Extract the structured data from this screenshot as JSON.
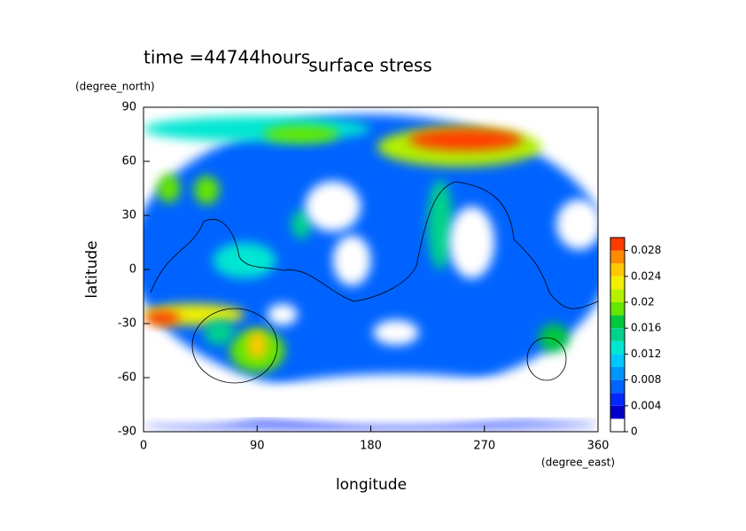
{
  "chart_data": {
    "type": "contour",
    "annotation": "time =44744hours",
    "title": "surface stress",
    "y_unit": "(degree_north)",
    "y_label": "latitude",
    "x_label": "longitude",
    "x_unit": "(degree_east)",
    "xlim": [
      0,
      360
    ],
    "ylim": [
      -90,
      90
    ],
    "xticks": [
      0,
      90,
      180,
      270,
      360
    ],
    "yticks": [
      -90,
      -60,
      -30,
      0,
      30,
      60,
      90
    ],
    "levels": [
      0,
      0.002,
      0.004,
      0.006,
      0.008,
      0.01,
      0.012,
      0.014,
      0.016,
      0.018,
      0.02,
      0.022,
      0.024,
      0.026,
      0.028,
      0.03
    ],
    "colors": [
      "#ffffff",
      "#0000c8",
      "#0028ff",
      "#0064ff",
      "#0096ff",
      "#00c8ff",
      "#00e6d2",
      "#00d28c",
      "#00c83c",
      "#64e600",
      "#b4f000",
      "#f0f000",
      "#ffc800",
      "#ff8c00",
      "#ff3c00"
    ],
    "colorbar_ticks": [
      0,
      0.004,
      0.008,
      0.012,
      0.016,
      0.02,
      0.024,
      0.028
    ],
    "features": [
      {
        "lon": 180,
        "lat": 8,
        "rlon": 190,
        "rlat": 78,
        "value": 0.006
      },
      {
        "lon": 180,
        "lat": -86,
        "rlon": 180,
        "rlat": 2,
        "value": 0.004
      },
      {
        "lon": 90,
        "lat": 78,
        "rlon": 90,
        "rlat": 7,
        "value": 0.012
      },
      {
        "lon": 125,
        "lat": 75,
        "rlon": 30,
        "rlat": 5,
        "value": 0.018
      },
      {
        "lon": 250,
        "lat": 68,
        "rlon": 65,
        "rlat": 11,
        "value": 0.02
      },
      {
        "lon": 255,
        "lat": 72,
        "rlon": 45,
        "rlat": 6,
        "value": 0.03
      },
      {
        "lon": 20,
        "lat": 45,
        "rlon": 9,
        "rlat": 8,
        "value": 0.018
      },
      {
        "lon": 50,
        "lat": 44,
        "rlon": 10,
        "rlat": 8,
        "value": 0.018
      },
      {
        "lon": 125,
        "lat": 25,
        "rlon": 8,
        "rlat": 8,
        "value": 0.014
      },
      {
        "lon": 235,
        "lat": 25,
        "rlon": 10,
        "rlat": 25,
        "value": 0.014
      },
      {
        "lon": 40,
        "lat": -25,
        "rlon": 40,
        "rlat": 6,
        "value": 0.022
      },
      {
        "lon": 15,
        "lat": -27,
        "rlon": 14,
        "rlat": 4,
        "value": 0.028
      },
      {
        "lon": 90,
        "lat": -45,
        "rlon": 22,
        "rlat": 12,
        "value": 0.018
      },
      {
        "lon": 90,
        "lat": -42,
        "rlon": 8,
        "rlat": 8,
        "value": 0.024
      },
      {
        "lon": 60,
        "lat": -35,
        "rlon": 12,
        "rlat": 7,
        "value": 0.014
      },
      {
        "lon": 325,
        "lat": -38,
        "rlon": 12,
        "rlat": 8,
        "value": 0.016
      },
      {
        "lon": 80,
        "lat": 5,
        "rlon": 25,
        "rlat": 10,
        "value": 0.012
      },
      {
        "lon": 150,
        "lat": 35,
        "rlon": 22,
        "rlat": 14,
        "value": 0
      },
      {
        "lon": 165,
        "lat": 5,
        "rlon": 15,
        "rlat": 14,
        "value": 0
      },
      {
        "lon": 260,
        "lat": 15,
        "rlon": 18,
        "rlat": 20,
        "value": 0
      },
      {
        "lon": 345,
        "lat": 25,
        "rlon": 18,
        "rlat": 14,
        "value": 0
      },
      {
        "lon": 110,
        "lat": -25,
        "rlon": 12,
        "rlat": 6,
        "value": 0
      },
      {
        "lon": 200,
        "lat": -35,
        "rlon": 18,
        "rlat": 7,
        "value": 0
      },
      {
        "lon": 200,
        "lat": -72,
        "rlon": 110,
        "rlat": 14,
        "value": 0
      },
      {
        "lon": 40,
        "lat": -78,
        "rlon": 45,
        "rlat": 7,
        "value": 0
      },
      {
        "lon": 330,
        "lat": -72,
        "rlon": 35,
        "rlat": 8,
        "value": 0
      }
    ]
  }
}
